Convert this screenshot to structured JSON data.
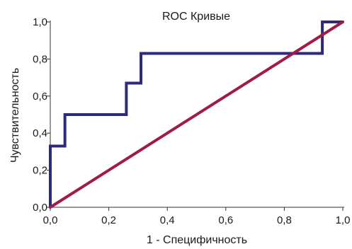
{
  "chart_data": {
    "type": "line",
    "title": "ROC Кривые",
    "xlabel": "1 - Специфичность",
    "ylabel": "Чувствительность",
    "xlim": [
      0,
      1
    ],
    "ylim": [
      0,
      1
    ],
    "x_ticks": [
      "0,0",
      "0,2",
      "0,4",
      "0,6",
      "0,8",
      "1,0"
    ],
    "y_ticks": [
      "0,0",
      "0,2",
      "0,4",
      "0,6",
      "0,8",
      "1,0"
    ],
    "grid": false,
    "legend": "none",
    "series": [
      {
        "color": "#2e2a7a",
        "points": [
          [
            0.0,
            0.0
          ],
          [
            0.0,
            0.33
          ],
          [
            0.05,
            0.33
          ],
          [
            0.05,
            0.5
          ],
          [
            0.26,
            0.5
          ],
          [
            0.26,
            0.67
          ],
          [
            0.31,
            0.67
          ],
          [
            0.31,
            0.83
          ],
          [
            0.93,
            0.83
          ],
          [
            0.93,
            1.0
          ],
          [
            1.0,
            1.0
          ]
        ]
      },
      {
        "color": "#a01c44",
        "points": [
          [
            0.0,
            0.0
          ],
          [
            1.0,
            1.0
          ]
        ]
      }
    ]
  }
}
